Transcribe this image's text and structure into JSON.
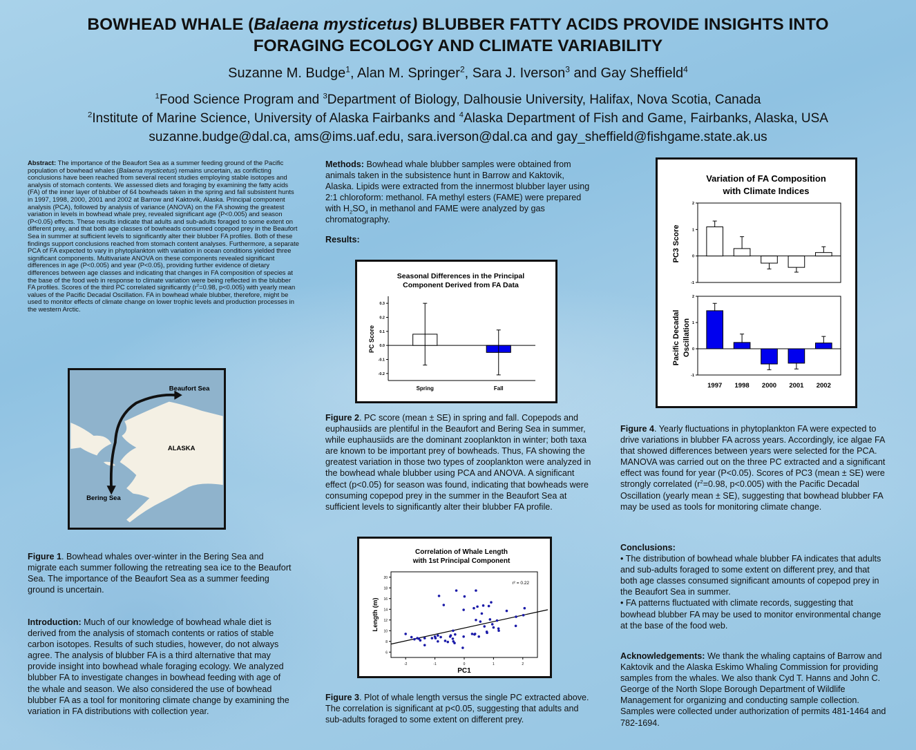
{
  "header": {
    "title_part1": "BOWHEAD WHALE (",
    "title_species": "Balaena mysticetus)",
    "title_part2": " BLUBBER FATTY ACIDS PROVIDE INSIGHTS INTO",
    "title_line2": "FORAGING ECOLOGY AND CLIMATE VARIABILITY",
    "authors": [
      {
        "name": "Suzanne M. Budge",
        "sup": "1",
        "sep": ", "
      },
      {
        "name": "Alan M. Springer",
        "sup": "2",
        "sep": ", "
      },
      {
        "name": "Sara J. Iverson",
        "sup": "3",
        "sep": " and "
      },
      {
        "name": "Gay Sheffield",
        "sup": "4",
        "sep": ""
      }
    ],
    "affiliation1": {
      "sup_a": "1",
      "text_a": "Food Science Program and ",
      "sup_b": "3",
      "text_b": "Department of Biology, Dalhousie University, Halifax, Nova Scotia, Canada"
    },
    "affiliation2": {
      "sup_a": "2",
      "text_a": "Institute of Marine Science, University of Alaska Fairbanks and ",
      "sup_b": "4",
      "text_b": "Alaska Department of Fish and Game, Fairbanks, Alaska, USA"
    },
    "emails": "suzanne.budge@dal.ca, ams@ims.uaf.edu, sara.iverson@dal.ca and gay_sheffield@fishgame.state.ak.us"
  },
  "abstract": {
    "label": "Abstract:",
    "text1": " The importance of the Beaufort Sea as a summer feeding ground of the Pacific population of bowhead whales (",
    "species": "Balaena mysticetus",
    "text2": ") remains uncertain, as conflicting conclusions have been reached from several recent studies employing stable isotopes and analysis of stomach contents. We assessed diets and foraging by examining the fatty acids (FA) of the inner layer of blubber of 64 bowheads taken in the spring and fall subsistent hunts in 1997, 1998, 2000, 2001 and 2002 at Barrow and Kaktovik, Alaska. Principal component analysis (PCA), followed by analysis of variance (ANOVA) on the FA showing the greatest variation in levels in bowhead whale prey, revealed significant age (P<0.005) and season (P<0.05) effects. These results indicate that adults and sub-adults foraged to some extent on different prey, and that both age classes of bowheads consumed copepod prey in the Beaufort Sea in summer at sufficient levels to significantly alter their blubber FA profiles. Both of these findings support conclusions reached from stomach content analyses. Furthermore, a separate PCA of FA expected to vary in phytoplankton with variation in ocean conditions yielded three significant components. Multivariate ANOVA on these components revealed significant differences in age (P<0.005) and year (P<0.05), providing further evidence of dietary differences between age classes and indicating that changes in FA composition of species at the base of the food web in response to climate variation were being reflected in the blubber FA profiles. Scores of the third PC correlated significantly (r",
    "sup": "2",
    "text3": "=0.98, p<0.005) with yearly mean values of the Pacific Decadal Oscillation. FA in bowhead whale blubber, therefore, might be used to monitor effects of climate change on lower trophic levels and production processes in the western Arctic."
  },
  "map": {
    "label_beaufort": "Beaufort Sea",
    "label_alaska": "ALASKA",
    "label_bering": "Bering Sea",
    "land_color": "#f4f0e4",
    "sea_color": "#8fb3cc"
  },
  "figure1": {
    "label": "Figure 1",
    "text": ". Bowhead whales over-winter in the Bering Sea and migrate each summer following the retreating sea ice to the Beaufort Sea. The importance of the Beaufort Sea as a summer feeding ground is uncertain."
  },
  "introduction": {
    "label": "Introduction:",
    "text": " Much of our knowledge of bowhead whale diet is derived from the analysis of stomach contents or ratios of stable carbon isotopes. Results of such studies, however, do not always agree. The analysis of blubber FA is a third alternative that may provide insight into bowhead whale foraging ecology. We analyzed blubber FA to investigate changes in bowhead feeding with age of the whale and season. We also considered the use of bowhead blubber FA as a tool for monitoring climate change by examining the variation in FA distributions with collection year."
  },
  "methods": {
    "label": "Methods:",
    "text1": " Bowhead whale blubber samples were obtained from animals taken in the subsistence hunt in Barrow and Kaktovik, Alaska. Lipids were extracted from the innermost blubber layer using 2:1 chloroform: methanol. FA methyl esters (FAME) were prepared with H",
    "sub1": "2",
    "text2": "SO",
    "sub2": "4",
    "text3": " in methanol and FAME were analyzed by gas chromatography."
  },
  "results": {
    "label": "Results:"
  },
  "figure2": {
    "label": "Figure 2",
    "text": ". PC score (mean ± SE) in spring and fall. Copepods and euphausiids are plentiful in the Beaufort and Bering Sea in summer, while euphausiids are the dominant zooplankton in winter; both taxa are known to be important prey of bowheads. Thus, FA showing the greatest variation in those two types of zooplankton were analyzed in the bowhead whale blubber using PCA and ANOVA. A significant effect (p<0.05) for season was found, indicating that bowheads were consuming copepod prey in the summer in the Beaufort Sea at sufficient levels to significantly alter their blubber FA profile."
  },
  "figure3": {
    "label": "Figure 3",
    "text": ". Plot of whale length versus the single PC extracted above. The correlation is significant at p<0.05, suggesting that adults and sub-adults foraged to some extent on different prey."
  },
  "figure4": {
    "label": "Figure 4",
    "text1": ". Yearly fluctuations in phytoplankton FA were expected to drive variations in blubber FA across years. Accordingly, ice algae FA that showed differences between years were selected for the PCA. MANOVA was carried out on the three PC extracted and a significant effect was found for year (P<0.05). Scores of PC3 (mean ± SE) were strongly correlated (r",
    "sup": "2",
    "text2": "=0.98, p<0.005) with the Pacific Decadal Oscillation (yearly mean ± SE), suggesting that bowhead blubber FA may be used as tools for monitoring climate change."
  },
  "conclusions": {
    "label": "Conclusions:",
    "items": [
      "• The distribution of bowhead whale blubber FA indicates that adults and sub-adults foraged to some extent on different prey, and that both age classes consumed significant amounts of copepod prey in the Beaufort Sea in summer.",
      "• FA patterns fluctuated with climate records, suggesting that bowhead blubber FA may be used to monitor environmental change at the base of the food web."
    ]
  },
  "acknowledgements": {
    "label": "Acknowledgements:",
    "text": " We thank the whaling captains of Barrow and Kaktovik and the Alaska Eskimo Whaling Commission for providing samples from the whales. We also thank Cyd T. Hanns and John C. George of the North Slope Borough Department of Wildlife Management for organizing and conducting sample collection. Samples were collected under authorization of permits 481-1464 and 782-1694."
  },
  "chart_data": [
    {
      "id": "fig2",
      "type": "bar",
      "title_line1": "Seasonal Differences in the Principal",
      "title_line2": "Component Derived from FA Data",
      "categories": [
        "Spring",
        "Fall"
      ],
      "values": [
        0.08,
        -0.05
      ],
      "error_low": [
        -0.14,
        -0.21
      ],
      "error_high": [
        0.3,
        0.11
      ],
      "bar_colors": [
        "#ffffff",
        "#0000ee"
      ],
      "ylabel": "PC Score",
      "ylim": [
        -0.25,
        0.35
      ],
      "yticks": [
        "-0.2",
        "-0.1",
        "0.0",
        "0.1",
        "0.2",
        "0.3"
      ],
      "grid": false
    },
    {
      "id": "fig3",
      "type": "scatter",
      "title_line1": "Correlation of Whale Length",
      "title_line2": "with 1st Principal Component",
      "xlabel": "PC1",
      "ylabel": "Length (m)",
      "xlim": [
        -2.5,
        2.5
      ],
      "ylim": [
        5,
        21
      ],
      "xticks": [
        "-2",
        "-1",
        "0",
        "1",
        "2"
      ],
      "yticks": [
        "6",
        "8",
        "10",
        "12",
        "14",
        "16",
        "18",
        "20"
      ],
      "annotation": "r² = 0.22",
      "point_color": "#1a1aa8",
      "trend": {
        "slope": 1.2,
        "intercept": 10.5
      },
      "points": [
        [
          -2.0,
          9.4
        ],
        [
          -1.8,
          8.8
        ],
        [
          -1.7,
          8.4
        ],
        [
          -1.6,
          8.6
        ],
        [
          -1.55,
          8.5
        ],
        [
          -1.5,
          8.2
        ],
        [
          -1.35,
          7.3
        ],
        [
          -1.35,
          8.6
        ],
        [
          -1.1,
          8.6
        ],
        [
          -1.0,
          8.9
        ],
        [
          -0.98,
          8.6
        ],
        [
          -0.9,
          8.0
        ],
        [
          -0.9,
          9.1
        ],
        [
          -0.86,
          16.5
        ],
        [
          -0.8,
          8.8
        ],
        [
          -0.7,
          14.8
        ],
        [
          -0.65,
          8.1
        ],
        [
          -0.56,
          7.9
        ],
        [
          -0.48,
          8.9
        ],
        [
          -0.46,
          9.1
        ],
        [
          -0.39,
          8.5
        ],
        [
          -0.38,
          10.0
        ],
        [
          -0.37,
          8.0
        ],
        [
          -0.33,
          7.7
        ],
        [
          -0.31,
          9.3
        ],
        [
          -0.27,
          17.5
        ],
        [
          -0.05,
          6.8
        ],
        [
          -0.02,
          8.9
        ],
        [
          -0.02,
          13.9
        ],
        [
          0.01,
          16.4
        ],
        [
          0.27,
          9.4
        ],
        [
          0.33,
          14.2
        ],
        [
          0.35,
          9.3
        ],
        [
          0.37,
          9.4
        ],
        [
          0.4,
          17.5
        ],
        [
          0.4,
          12.0
        ],
        [
          0.45,
          14.5
        ],
        [
          0.5,
          8.9
        ],
        [
          0.55,
          11.7
        ],
        [
          0.6,
          13.2
        ],
        [
          0.65,
          14.7
        ],
        [
          0.69,
          10.8
        ],
        [
          0.77,
          9.8
        ],
        [
          0.78,
          9.6
        ],
        [
          0.84,
          14.6
        ],
        [
          0.88,
          12.1
        ],
        [
          0.92,
          15.3
        ],
        [
          0.96,
          11.2
        ],
        [
          1.0,
          10.6
        ],
        [
          1.12,
          11.9
        ],
        [
          1.17,
          10.4
        ],
        [
          1.18,
          10.0
        ],
        [
          1.45,
          13.7
        ],
        [
          1.77,
          12.6
        ],
        [
          1.76,
          10.9
        ],
        [
          2.02,
          12.9
        ],
        [
          2.06,
          14.2
        ]
      ]
    },
    {
      "id": "fig4a",
      "type": "bar",
      "title_line1": "Variation of FA Composition",
      "title_line2": "with Climate Indices",
      "categories": [
        "1997",
        "1998",
        "2000",
        "2001",
        "2002"
      ],
      "values": [
        1.1,
        0.28,
        -0.27,
        -0.43,
        0.13
      ],
      "error": [
        0.22,
        0.45,
        0.22,
        0.18,
        0.22
      ],
      "bar_color": "#ffffff",
      "ylabel": "PC3 Score",
      "ylim": [
        -1,
        2
      ],
      "yticks": [
        "-1",
        "0",
        "1",
        "2"
      ]
    },
    {
      "id": "fig4b",
      "type": "bar",
      "categories": [
        "1997",
        "1998",
        "2000",
        "2001",
        "2002"
      ],
      "values": [
        1.45,
        0.24,
        -0.58,
        -0.55,
        0.22
      ],
      "error": [
        0.28,
        0.32,
        0.22,
        0.22,
        0.25
      ],
      "bar_color": "#0000ee",
      "ylabel_line1": "Pacific Decadal",
      "ylabel_line2": "Oscillation",
      "ylim": [
        -1,
        2
      ],
      "yticks": [
        "-1",
        "0",
        "1",
        "2"
      ]
    }
  ]
}
